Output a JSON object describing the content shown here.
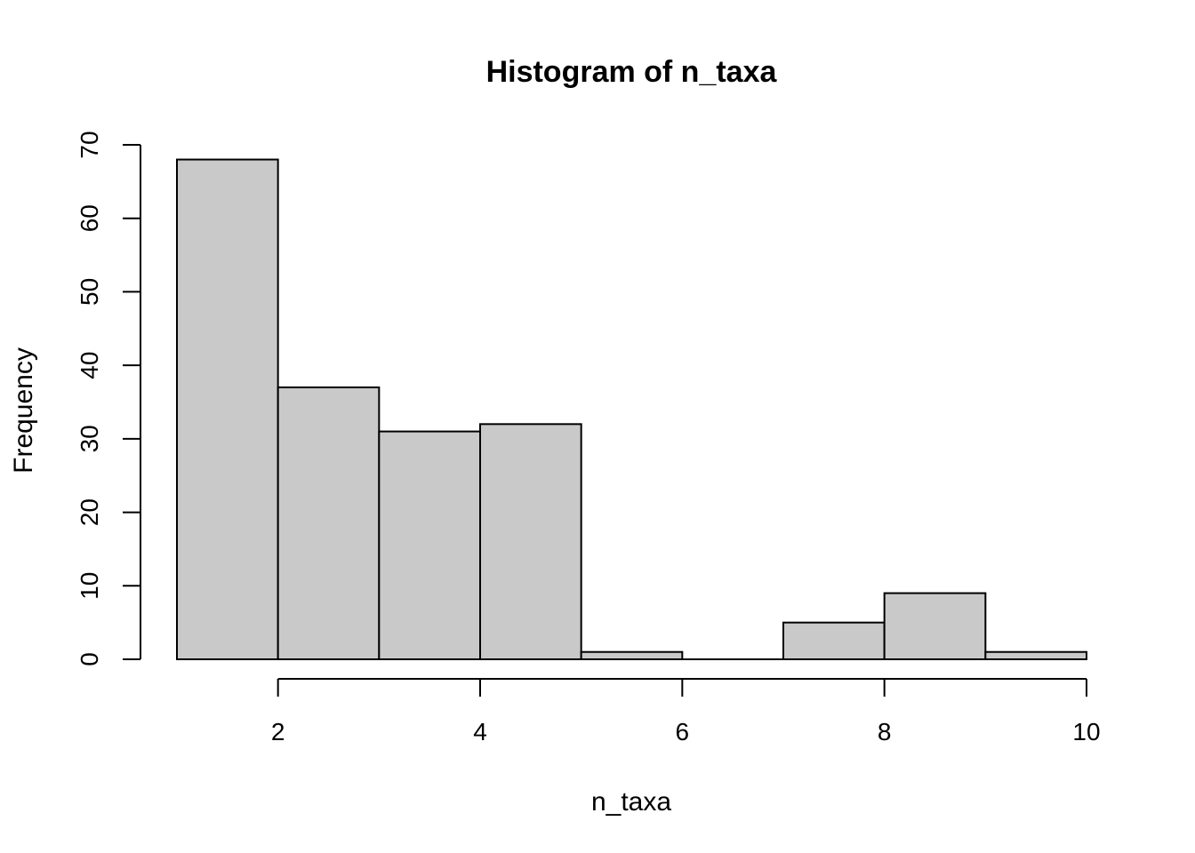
{
  "chart_data": {
    "type": "bar",
    "title": "Histogram of n_taxa",
    "xlabel": "n_taxa",
    "ylabel": "Frequency",
    "bins": [
      {
        "start": 1,
        "end": 2,
        "count": 68
      },
      {
        "start": 2,
        "end": 3,
        "count": 37
      },
      {
        "start": 3,
        "end": 4,
        "count": 31
      },
      {
        "start": 4,
        "end": 5,
        "count": 32
      },
      {
        "start": 5,
        "end": 6,
        "count": 1
      },
      {
        "start": 6,
        "end": 7,
        "count": 0
      },
      {
        "start": 7,
        "end": 8,
        "count": 5
      },
      {
        "start": 8,
        "end": 9,
        "count": 9
      },
      {
        "start": 9,
        "end": 10,
        "count": 1
      }
    ],
    "xlim": [
      1,
      10
    ],
    "ylim": [
      0,
      70
    ],
    "x_ticks": [
      "2",
      "4",
      "6",
      "8",
      "10"
    ],
    "y_ticks": [
      "0",
      "10",
      "20",
      "30",
      "40",
      "50",
      "60",
      "70"
    ],
    "bar_color": "#c9c9c9",
    "grid": false,
    "legend": "none"
  }
}
